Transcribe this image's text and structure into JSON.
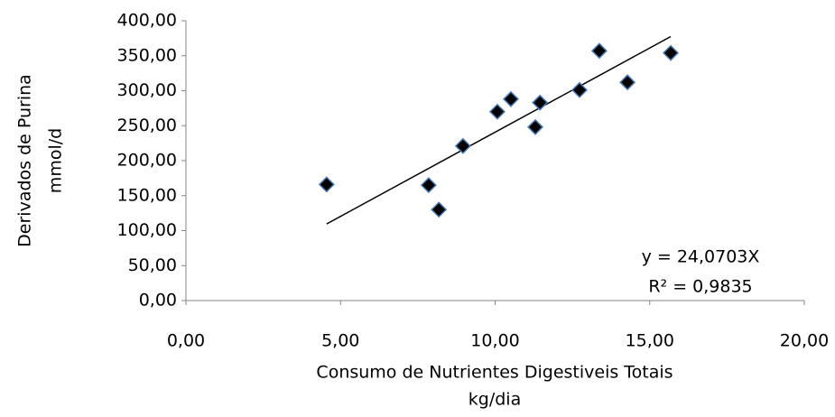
{
  "chart_data": {
    "type": "scatter",
    "x_label": [
      "Consumo de Nutrientes Digestiveis Totais",
      "kg/dia"
    ],
    "y_label": [
      "Derivados  de Purina",
      "mmol/d"
    ],
    "x": [
      4.55,
      7.85,
      8.18,
      8.96,
      10.07,
      10.51,
      11.3,
      11.45,
      12.73,
      13.37,
      14.28,
      15.68
    ],
    "values": [
      166,
      165,
      130,
      221,
      270,
      288,
      248,
      283,
      301,
      357,
      312,
      354
    ],
    "color": "#000000",
    "edge_color": "#4a7ebb",
    "xlim": [
      0,
      20
    ],
    "xticks": [
      {
        "value": 0,
        "label": "0,00"
      },
      {
        "value": 5,
        "label": "5,00"
      },
      {
        "value": 10,
        "label": "10,00"
      },
      {
        "value": 15,
        "label": "15,00"
      },
      {
        "value": 20,
        "label": "20,00"
      }
    ],
    "ylim": [
      0,
      400
    ],
    "yticks": [
      {
        "value": 0,
        "label": "0,00"
      },
      {
        "value": 50,
        "label": "50,00"
      },
      {
        "value": 100,
        "label": "100,00"
      },
      {
        "value": 150,
        "label": "150,00"
      },
      {
        "value": 200,
        "label": "200,00"
      },
      {
        "value": 250,
        "label": "250,00"
      },
      {
        "value": 300,
        "label": "300,00"
      },
      {
        "value": 350,
        "label": "350,00"
      },
      {
        "value": 400,
        "label": "400,00"
      }
    ],
    "trendline": {
      "slope": 24.0703,
      "equation": "y = 24,0703X",
      "r2_label": "R² = 0,9835"
    },
    "grid": false
  }
}
